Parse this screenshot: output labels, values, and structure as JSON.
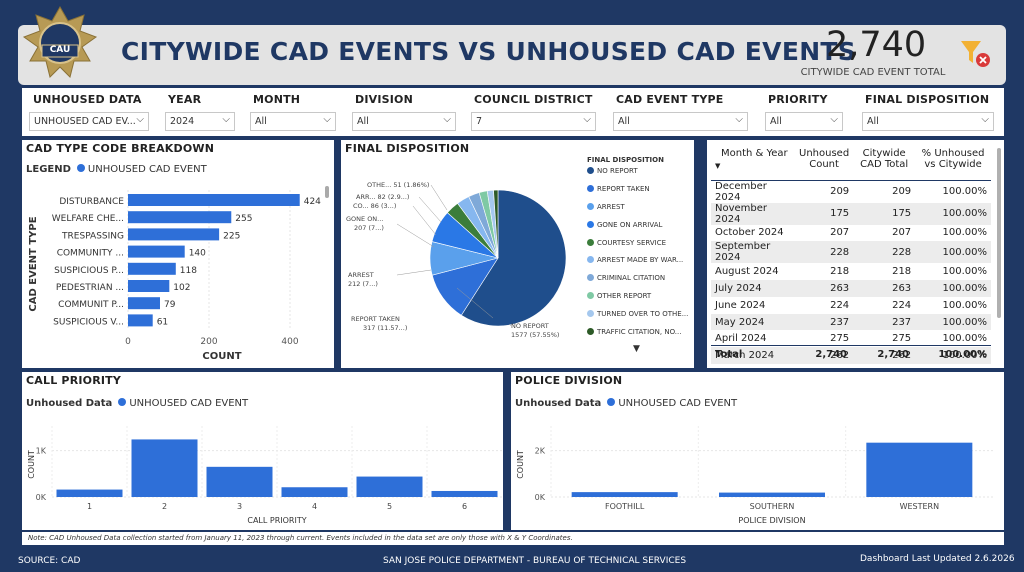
{
  "header": {
    "logo_text": "CAU",
    "title": "CITYWIDE CAD EVENTS VS UNHOUSED CAD EVENTS",
    "kpi_value": "2,740",
    "kpi_label": "CITYWIDE CAD EVENT TOTAL"
  },
  "filters": [
    {
      "label": "UNHOUSED DATA",
      "value": "UNHOUSED CAD EV..."
    },
    {
      "label": "YEAR",
      "value": "2024"
    },
    {
      "label": "MONTH",
      "value": "All"
    },
    {
      "label": "DIVISION",
      "value": "All"
    },
    {
      "label": "COUNCIL DISTRICT",
      "value": "7"
    },
    {
      "label": "CAD EVENT TYPE",
      "value": "All"
    },
    {
      "label": "PRIORITY",
      "value": "All"
    },
    {
      "label": "FINAL DISPOSITION",
      "value": "All"
    }
  ],
  "cad_breakdown": {
    "title": "CAD TYPE CODE BREAKDOWN",
    "legend_label": "LEGEND",
    "legend_item": "UNHOUSED CAD EVENT",
    "y_axis_label": "CAD EVENT TYPE",
    "x_axis_label": "COUNT",
    "ticks": [
      "0",
      "200",
      "400"
    ]
  },
  "disposition": {
    "title": "FINAL DISPOSITION",
    "legend_title": "FINAL DISPOSITION",
    "legend": [
      "NO REPORT",
      "REPORT TAKEN",
      "ARREST",
      "GONE ON ARRIVAL",
      "COURTESY SERVICE",
      "ARREST MADE BY WAR...",
      "CRIMINAL CITATION",
      "OTHER REPORT",
      "TURNED OVER TO OTHE...",
      "TRAFFIC CITATION, NO..."
    ],
    "labels": {
      "no_report_name": "NO REPORT",
      "no_report_val": "1577 (57.55%)",
      "report_taken_name": "REPORT TAKEN",
      "report_taken_val": "317 (11.57...)",
      "arrest_name": "ARREST",
      "arrest_val": "212 (7...)",
      "gone_name": "GONE ON...",
      "gone_val": "207 (7...)",
      "co": "CO... 86 (3...)",
      "arr": "ARR... 82 (2.9...)",
      "othe": "OTHE... 51 (1.86%)"
    }
  },
  "month_table": {
    "headers": [
      [
        "Month & Year"
      ],
      [
        "Unhoused",
        "Count"
      ],
      [
        "Citywide",
        "CAD Total"
      ],
      [
        "% Unhoused",
        "vs Citywide"
      ]
    ],
    "rows": [
      [
        "December 2024",
        "209",
        "209",
        "100.00%"
      ],
      [
        "November 2024",
        "175",
        "175",
        "100.00%"
      ],
      [
        "October 2024",
        "207",
        "207",
        "100.00%"
      ],
      [
        "September 2024",
        "228",
        "228",
        "100.00%"
      ],
      [
        "August 2024",
        "218",
        "218",
        "100.00%"
      ],
      [
        "July 2024",
        "263",
        "263",
        "100.00%"
      ],
      [
        "June 2024",
        "224",
        "224",
        "100.00%"
      ],
      [
        "May 2024",
        "237",
        "237",
        "100.00%"
      ],
      [
        "April 2024",
        "275",
        "275",
        "100.00%"
      ],
      [
        "March 2024",
        "262",
        "262",
        "100.00%"
      ]
    ],
    "total": [
      "Total",
      "2,740",
      "2,740",
      "100.00%"
    ]
  },
  "call_priority": {
    "title": "CALL PRIORITY",
    "legend_label": "Unhoused Data",
    "legend_item": "UNHOUSED CAD EVENT",
    "y_axis_label": "COUNT",
    "x_axis_label": "CALL PRIORITY",
    "ticks": [
      "0K",
      "1K"
    ]
  },
  "police_division": {
    "title": "POLICE DIVISION",
    "legend_label": "Unhoused Data",
    "legend_item": "UNHOUSED CAD EVENT",
    "y_axis_label": "COUNT",
    "x_axis_label": "POLICE DIVISION",
    "ticks": [
      "0K",
      "2K"
    ]
  },
  "note": "Note: CAD Unhoused Data collection started from January 11, 2023 through current. Events included in the data set are only those with X & Y Coordinates.",
  "footer": {
    "source": "SOURCE: CAD",
    "center": "SAN JOSE POLICE DEPARTMENT - BUREAU OF TECHNICAL SERVICES",
    "updated": "Dashboard Last Updated 2.6.2026"
  },
  "colors": {
    "bar": "#2e6fd8",
    "navy": "#1f3864"
  },
  "chart_data": [
    {
      "type": "bar",
      "title": "CAD TYPE CODE BREAKDOWN",
      "orientation": "horizontal",
      "categories": [
        "DISTURBANCE",
        "WELFARE CHE...",
        "TRESPASSING",
        "COMMUNITY ...",
        "SUSPICIOUS P...",
        "PEDESTRIAN ...",
        "COMMUNIT P...",
        "SUSPICIOUS V..."
      ],
      "values": [
        424,
        255,
        225,
        140,
        118,
        102,
        79,
        61
      ],
      "xlabel": "COUNT",
      "ylabel": "CAD EVENT TYPE",
      "xlim": [
        0,
        460
      ]
    },
    {
      "type": "pie",
      "title": "FINAL DISPOSITION",
      "categories": [
        "NO REPORT",
        "REPORT TAKEN",
        "ARREST",
        "GONE ON ARRIVAL",
        "COURTESY SERVICE",
        "ARREST MADE BY WAR...",
        "CRIMINAL CITATION",
        "OTHER REPORT",
        "TURNED OVER TO OTHE...",
        "TRAFFIC CITATION, NO..."
      ],
      "values": [
        1577,
        317,
        212,
        207,
        86,
        82,
        70,
        51,
        40,
        28
      ],
      "colors": [
        "#1f4e8c",
        "#2e6fd8",
        "#5aa0ec",
        "#2a78e6",
        "#3b7d3b",
        "#86b7ef",
        "#7fa9d8",
        "#7fc9a4",
        "#a5c8ee",
        "#2d5a27"
      ]
    },
    {
      "type": "bar",
      "title": "CALL PRIORITY",
      "categories": [
        "1",
        "2",
        "3",
        "4",
        "5",
        "6"
      ],
      "values": [
        160,
        1240,
        650,
        210,
        440,
        130
      ],
      "xlabel": "CALL PRIORITY",
      "ylabel": "COUNT",
      "ylim": [
        0,
        1400
      ]
    },
    {
      "type": "bar",
      "title": "POLICE DIVISION",
      "categories": [
        "FOOTHILL",
        "SOUTHERN",
        "WESTERN"
      ],
      "values": [
        210,
        190,
        2340
      ],
      "xlabel": "POLICE DIVISION",
      "ylabel": "COUNT",
      "ylim": [
        0,
        2800
      ]
    }
  ]
}
